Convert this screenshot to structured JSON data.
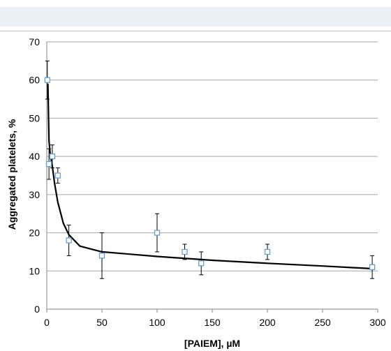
{
  "chart_data": {
    "type": "scatter",
    "title": "",
    "xlabel": "[PAIEM], µM",
    "ylabel": "Aggregated platelets, %",
    "xlim": [
      0,
      300
    ],
    "ylim": [
      0,
      70
    ],
    "x_ticks": [
      0,
      50,
      100,
      150,
      200,
      250,
      300
    ],
    "y_ticks": [
      0,
      10,
      20,
      30,
      40,
      50,
      60,
      70
    ],
    "grid": "horizontal",
    "legend": "none",
    "points": [
      {
        "x": 0.5,
        "y": 60,
        "err": 5
      },
      {
        "x": 2,
        "y": 38,
        "err": 4
      },
      {
        "x": 5,
        "y": 40,
        "err": 3
      },
      {
        "x": 10,
        "y": 35,
        "err": 2
      },
      {
        "x": 20,
        "y": 18,
        "err": 4
      },
      {
        "x": 50,
        "y": 14,
        "err": 6
      },
      {
        "x": 100,
        "y": 20,
        "err": 5
      },
      {
        "x": 125,
        "y": 15,
        "err": 2
      },
      {
        "x": 140,
        "y": 12,
        "err": 3
      },
      {
        "x": 200,
        "y": 15,
        "err": 2
      },
      {
        "x": 295,
        "y": 11,
        "err": 3
      }
    ],
    "fit_curve": {
      "x": [
        1,
        2,
        3,
        5,
        7,
        10,
        15,
        20,
        30,
        50,
        75,
        100,
        150,
        200,
        250,
        295
      ],
      "y": [
        59,
        44,
        41,
        37.5,
        33,
        28,
        22.5,
        19.5,
        16.5,
        15,
        14.4,
        13.8,
        12.8,
        12,
        11.3,
        10.6
      ]
    },
    "marker_color": "#5b9bd5",
    "curve_color": "#000000"
  }
}
